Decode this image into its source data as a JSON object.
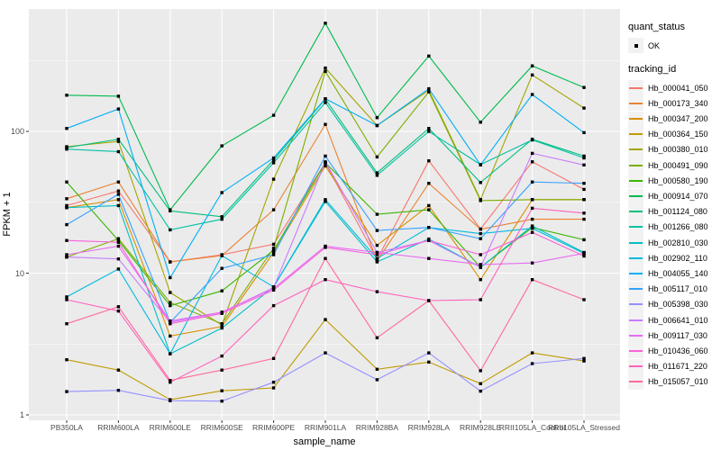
{
  "chart_data": {
    "type": "line",
    "title": "",
    "xlabel": "sample_name",
    "ylabel": "FPKM + 1",
    "yscale": "log10",
    "ylim": [
      1,
      730
    ],
    "yticks": [
      1,
      10,
      100
    ],
    "yticks_minor": [
      3.1623,
      31.623,
      316.23
    ],
    "grid": "white-on-grey",
    "legend_position": "right",
    "panel_bg": "#EBEBEB",
    "grid_color": "#FFFFFF",
    "tick_label_color": "#4d4d4d",
    "marker_color": "#000000",
    "categories": [
      "PB350LA",
      "RRIM600LA",
      "RRIM600LE",
      "RRIM600SE",
      "RRIM600PE",
      "RRIM901LA",
      "RRIM928BA",
      "RRIM928LA",
      "RRIM928LE",
      "RRII105LA_Control",
      "RRII105LA_Stressed"
    ],
    "legend": {
      "quant_status_title": "quant_status",
      "quant_ok_label": "OK",
      "tracking_title": "tracking_id"
    },
    "series": [
      {
        "name": "Hb_000041_050",
        "color": "#F8766D",
        "values": [
          30,
          38,
          12,
          13.5,
          16,
          60,
          12.5,
          62,
          20.5,
          61,
          39
        ]
      },
      {
        "name": "Hb_000173_340",
        "color": "#EA8331",
        "values": [
          33.5,
          44,
          12,
          13.3,
          28,
          112,
          12.2,
          43,
          20.4,
          24,
          24
        ]
      },
      {
        "name": "Hb_000347_200",
        "color": "#D89000",
        "values": [
          29,
          33,
          3.6,
          4.2,
          14,
          57,
          15.7,
          30,
          9.0,
          33,
          33
        ]
      },
      {
        "name": "Hb_000364_150",
        "color": "#C09B00",
        "values": [
          2.45,
          2.07,
          1.28,
          1.48,
          1.55,
          4.7,
          2.1,
          2.36,
          1.66,
          2.74,
          2.4
        ]
      },
      {
        "name": "Hb_000380_010",
        "color": "#A3A500",
        "values": [
          78,
          85,
          7.3,
          4.3,
          46,
          280,
          110,
          195,
          33,
          250,
          146
        ]
      },
      {
        "name": "Hb_000491_090",
        "color": "#7CAE00",
        "values": [
          13,
          17.5,
          6.2,
          4.4,
          15,
          265,
          66,
          190,
          32.5,
          33,
          33
        ]
      },
      {
        "name": "Hb_000580_190",
        "color": "#39B600",
        "values": [
          44,
          17,
          5.9,
          7.5,
          14.5,
          60,
          26,
          28,
          11,
          21,
          17.2
        ]
      },
      {
        "name": "Hb_000914_070",
        "color": "#00BB4E",
        "values": [
          180,
          177,
          28,
          79,
          130,
          580,
          125,
          340,
          116,
          290,
          204
        ]
      },
      {
        "name": "Hb_001124_080",
        "color": "#00BF7D",
        "values": [
          77,
          88,
          27.5,
          25,
          63,
          169,
          51,
          105,
          43.6,
          88,
          67
        ]
      },
      {
        "name": "Hb_001266_080",
        "color": "#00C1A3",
        "values": [
          75,
          72,
          20.2,
          24,
          60,
          160,
          49,
          100,
          58.3,
          87,
          65
        ]
      },
      {
        "name": "Hb_002810_030",
        "color": "#00BFC4",
        "values": [
          29,
          30,
          2.7,
          4.1,
          8.0,
          32,
          12.0,
          17.4,
          11,
          21.5,
          14.0
        ]
      },
      {
        "name": "Hb_002902_110",
        "color": "#00BAE0",
        "values": [
          6.8,
          10.7,
          2.7,
          13.3,
          8.0,
          33,
          12.7,
          21,
          19,
          20.7,
          13.8
        ]
      },
      {
        "name": "Hb_004055_140",
        "color": "#00B0F6",
        "values": [
          105,
          144,
          9.3,
          37,
          65,
          170,
          110,
          200,
          58,
          182,
          98
        ]
      },
      {
        "name": "Hb_005117_010",
        "color": "#35A2FF",
        "values": [
          22,
          36,
          4.5,
          10.8,
          13.5,
          67,
          20,
          21,
          17.5,
          44,
          43
        ]
      },
      {
        "name": "Hb_005398_030",
        "color": "#9590FF",
        "values": [
          1.46,
          1.49,
          1.26,
          1.25,
          1.7,
          2.74,
          1.77,
          2.74,
          1.47,
          2.3,
          2.5
        ]
      },
      {
        "name": "Hb_006641_010",
        "color": "#C77CFF",
        "values": [
          13,
          12.6,
          4.5,
          5.3,
          7.9,
          61,
          14,
          17,
          11,
          70,
          58
        ]
      },
      {
        "name": "Hb_009117_030",
        "color": "#E76BF3",
        "values": [
          13.5,
          15.5,
          4.6,
          5.3,
          7.8,
          15.5,
          14,
          12.7,
          11.5,
          11.8,
          13.8
        ]
      },
      {
        "name": "Hb_010436_060",
        "color": "#FA62DB",
        "values": [
          17,
          16.5,
          4.4,
          5.2,
          7.6,
          15.2,
          13.5,
          17,
          13.5,
          19.4,
          13.2
        ]
      },
      {
        "name": "Hb_011671_220",
        "color": "#FF62BC",
        "values": [
          6.5,
          5.4,
          1.7,
          2.6,
          5.9,
          9.0,
          7.4,
          6.4,
          6.5,
          28.7,
          26.5
        ]
      },
      {
        "name": "Hb_015057_010",
        "color": "#FF6A98",
        "values": [
          4.4,
          5.8,
          1.75,
          2.07,
          2.5,
          12.7,
          3.5,
          6.4,
          2.05,
          9.0,
          6.5
        ]
      }
    ]
  }
}
